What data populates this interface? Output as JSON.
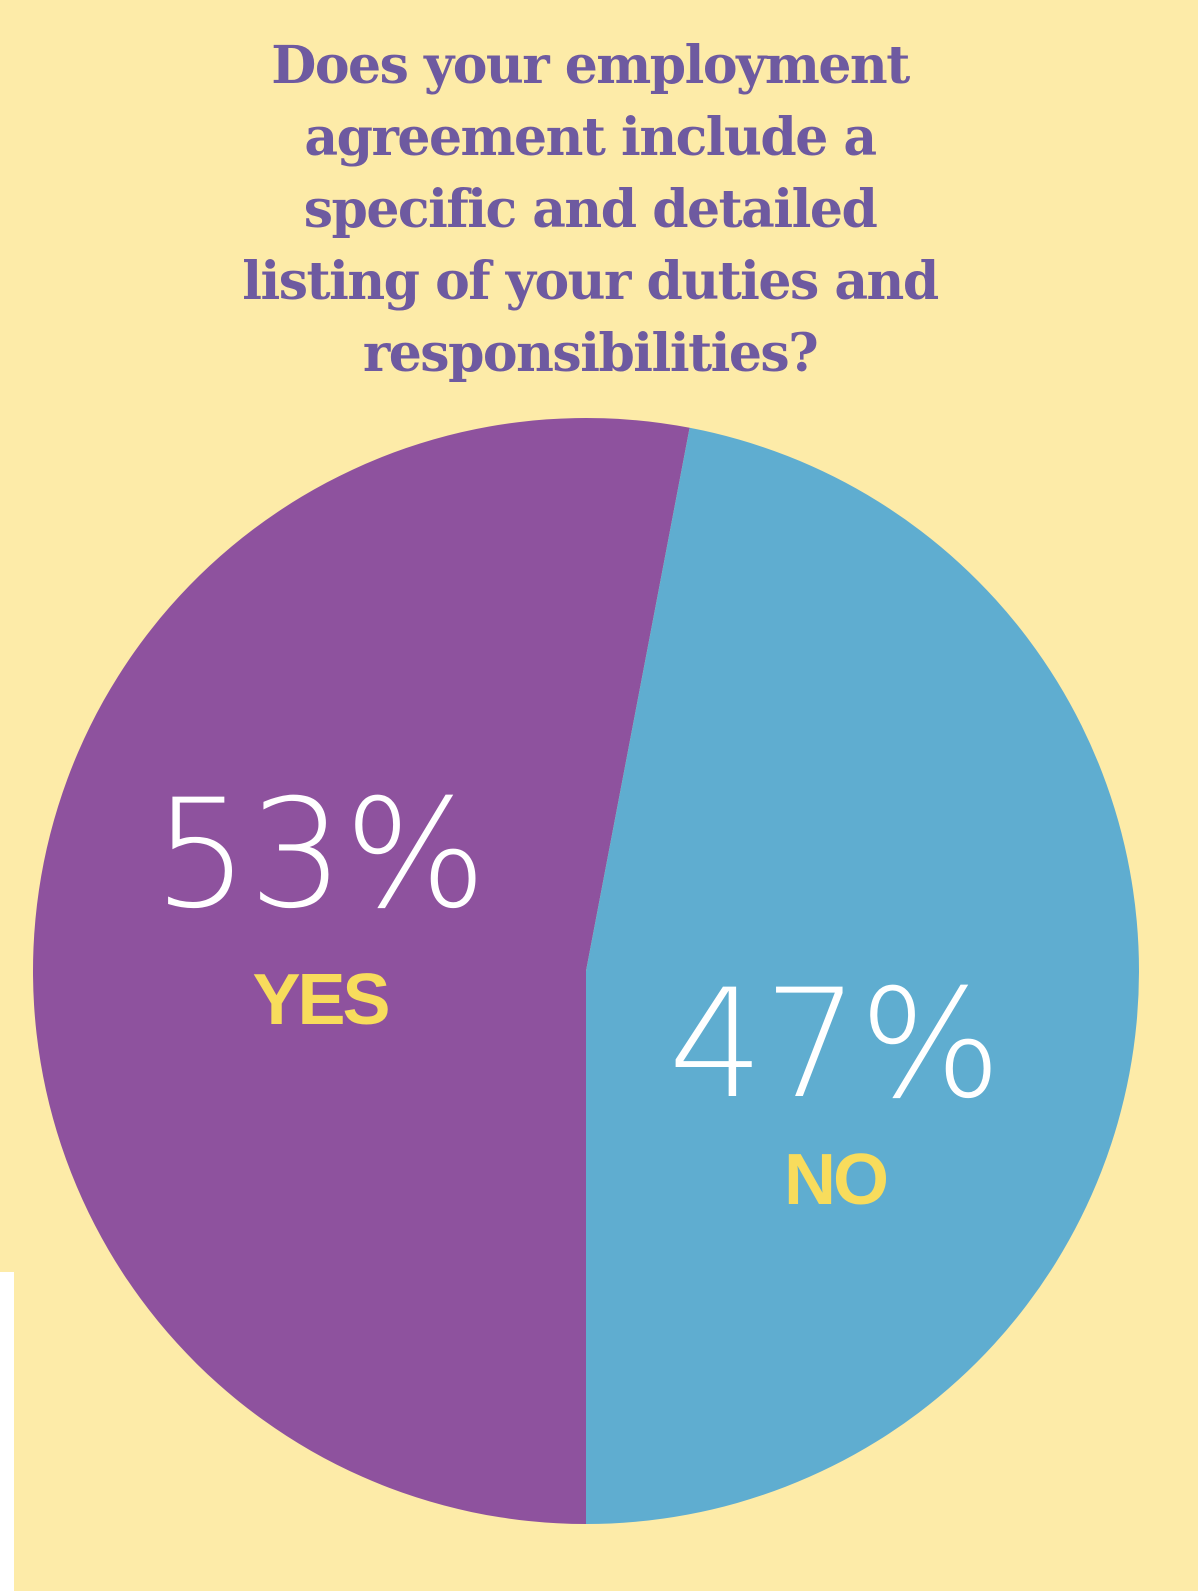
{
  "chart_data": {
    "type": "pie",
    "title": "Does your employment agreement include a specific and detailed listing of your duties and responsibilities?",
    "categories": [
      "YES",
      "NO"
    ],
    "values": [
      53,
      47
    ],
    "value_labels": [
      "53%",
      "47%"
    ],
    "colors": [
      "#8e529e",
      "#5fadd0"
    ]
  }
}
